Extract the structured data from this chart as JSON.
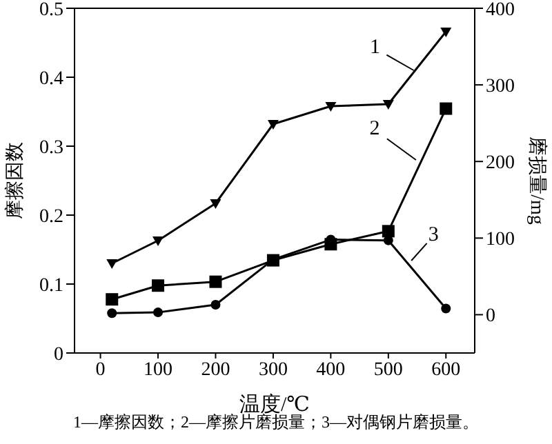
{
  "chart_data": {
    "type": "line",
    "xlabel": "温度/℃",
    "ylabel": "摩擦因数",
    "y2label": "磨损量/mg",
    "x": [
      20,
      100,
      200,
      300,
      400,
      500,
      600
    ],
    "series": [
      {
        "color": "#000000",
        "marker": "triangle",
        "values": [
          0.13,
          0.163,
          0.217,
          0.332,
          0.358,
          0.361,
          0.466
        ]
      },
      {
        "color": "#000000",
        "marker": "square",
        "axis": "y2",
        "values": [
          20,
          38,
          43,
          71,
          92,
          109,
          269
        ]
      },
      {
        "color": "#000000",
        "marker": "circle",
        "axis": "y2",
        "values": [
          2,
          3,
          13,
          72,
          98,
          97,
          8
        ]
      }
    ],
    "xlim": [
      -45,
      650
    ],
    "xticks": [
      0,
      100,
      200,
      300,
      400,
      500,
      600
    ],
    "ylim": [
      0,
      0.5
    ],
    "yticks": [
      0,
      0.1,
      0.2,
      0.3,
      0.4,
      0.5
    ],
    "y2lim": [
      -50,
      400
    ],
    "y2ticks": [
      0,
      100,
      200,
      300,
      400
    ],
    "grid": false,
    "legend": false,
    "annotations": [
      {
        "text": "1",
        "x": 544,
        "y": 0.41
      },
      {
        "text": "2",
        "x": 548,
        "y": 0.28
      },
      {
        "text": "3",
        "x": 540,
        "y": 0.134
      },
      "1—摩擦因数；2—摩擦片磨损量；3—对偶钢片磨损量。"
    ]
  }
}
